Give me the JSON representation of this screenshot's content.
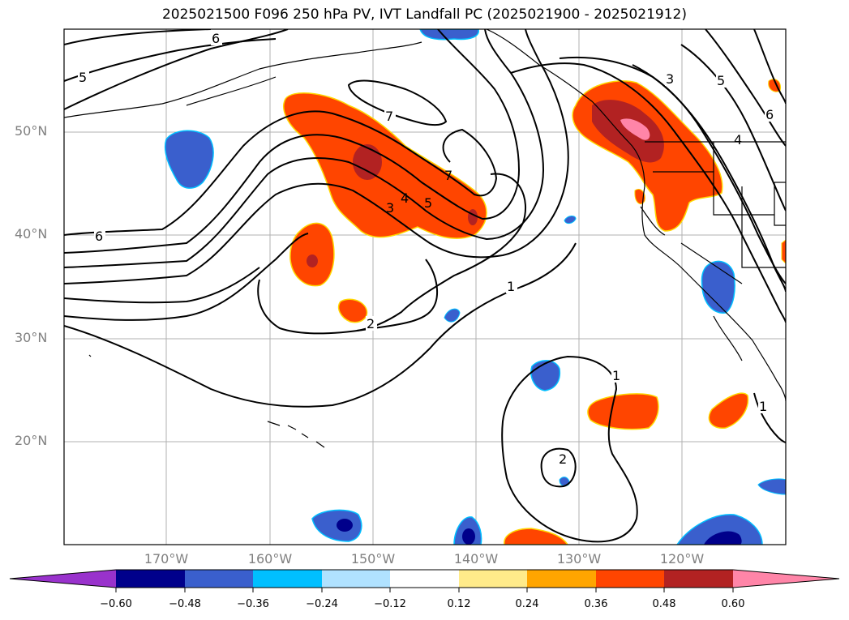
{
  "title": "2025021500 F096 250 hPa PV, IVT Landfall PC (2025021900 - 2025021912)",
  "lat_labels": [
    "50°N",
    "40°N",
    "30°N",
    "20°N"
  ],
  "lon_labels": [
    "170°W",
    "160°W",
    "150°W",
    "140°W",
    "130°W",
    "120°W"
  ],
  "colorbar": {
    "ticks": [
      "−0.60",
      "−0.48",
      "−0.36",
      "−0.24",
      "−0.12",
      "0.12",
      "0.24",
      "0.36",
      "0.48",
      "0.60"
    ],
    "colors": [
      "#9932cc",
      "#00008b",
      "#3a5fcd",
      "#00bfff",
      "#b0e2ff",
      "#ffffff",
      "#ffeb8a",
      "#ffa500",
      "#ff4500",
      "#b22222",
      "#ff85a8"
    ]
  },
  "contour_labels": [
    "6",
    "5",
    "7",
    "6",
    "3",
    "4",
    "5",
    "1",
    "2",
    "1",
    "2",
    "3",
    "5",
    "6",
    "4",
    "1",
    "7"
  ],
  "colors": {
    "pos_red": "#ff4500",
    "pos_dark": "#b22222",
    "pos_pink": "#ff85a8",
    "neg_blue": "#3a5fcd",
    "neg_navy": "#00008b"
  }
}
